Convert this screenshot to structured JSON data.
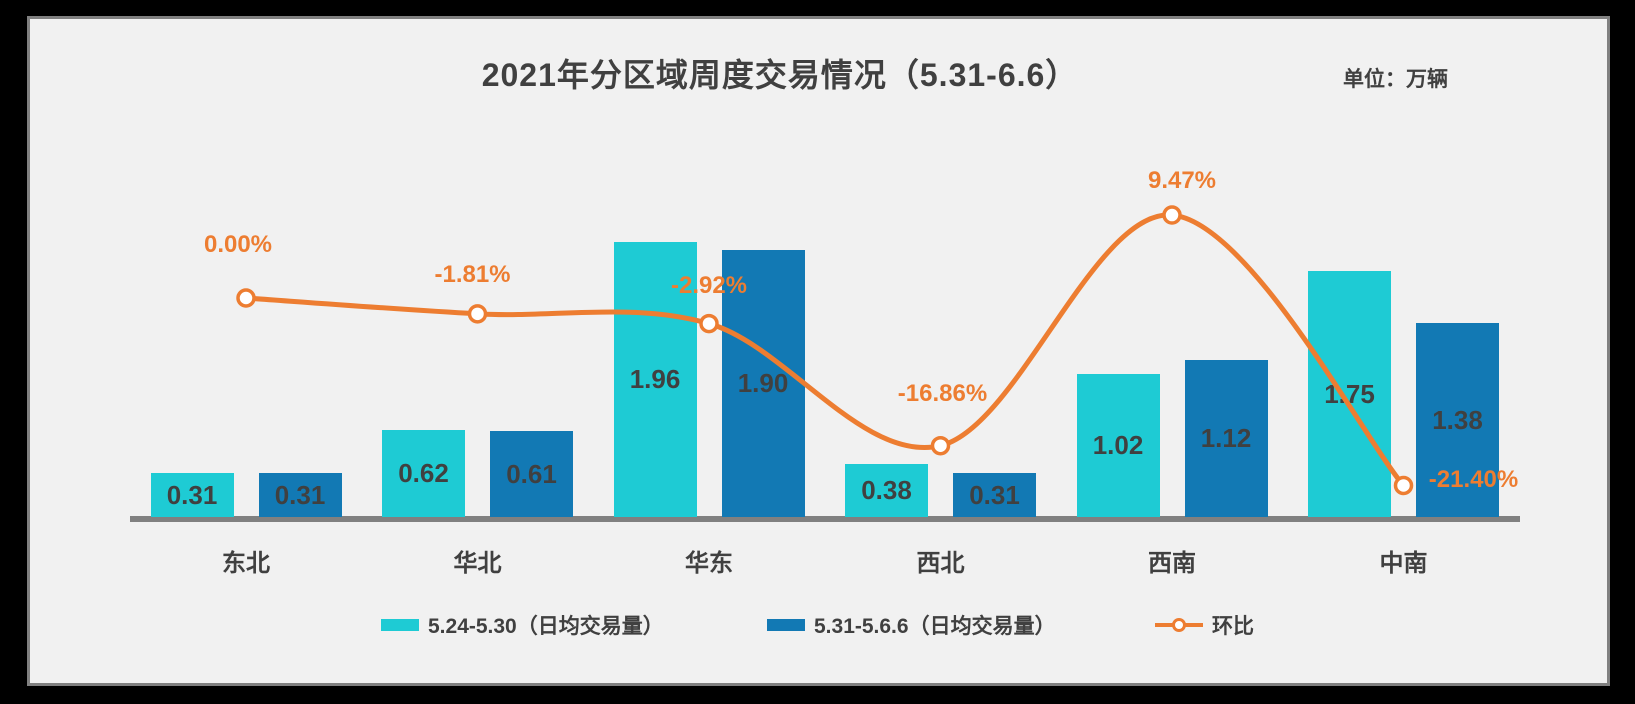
{
  "title": "2021年分区域周度交易情况（5.31-6.6）",
  "unit_label": "单位：万辆",
  "colors": {
    "series1": "#1ECBD4",
    "series2": "#1279B4",
    "line": "#ED7D31",
    "text": "#404040",
    "axis": "#808080",
    "panel_bg": "#F1F1F1",
    "outer_bg": "#000000",
    "marker_fill": "#FFFFFF"
  },
  "chart_data": {
    "type": "combo-bar-line",
    "categories": [
      "东北",
      "华北",
      "华东",
      "西北",
      "西南",
      "中南"
    ],
    "series": [
      {
        "name": "5.24-5.30（日均交易量）",
        "type": "bar",
        "color_key": "series1",
        "values": [
          0.31,
          0.62,
          1.96,
          0.38,
          1.02,
          1.75
        ]
      },
      {
        "name": "5.31-5.6.6（日均交易量）",
        "type": "bar",
        "color_key": "series2",
        "values": [
          0.31,
          0.61,
          1.9,
          0.31,
          1.12,
          1.38
        ]
      },
      {
        "name": "环比",
        "type": "line",
        "color_key": "line",
        "values_pct": [
          0.0,
          -1.81,
          -2.92,
          -16.86,
          9.47,
          -21.4
        ],
        "labels": [
          "0.00%",
          "-1.81%",
          "-2.92%",
          "-16.86%",
          "9.47%",
          "-21.40%"
        ]
      }
    ],
    "title": "2021年分区域周度交易情况（5.31-6.6）",
    "unit": "单位：万辆",
    "xlabel": "",
    "ylabel": "",
    "value_labels_decimals": 2,
    "grid": false,
    "legend_position": "bottom",
    "y_axis_visible": false
  },
  "legend": {
    "items": [
      {
        "label": "5.24-5.30（日均交易量）",
        "marker": "rect-cyan"
      },
      {
        "label": "5.31-5.6.6（日均交易量）",
        "marker": "rect-blue"
      },
      {
        "label": "环比",
        "marker": "line-circle-orange"
      }
    ]
  }
}
